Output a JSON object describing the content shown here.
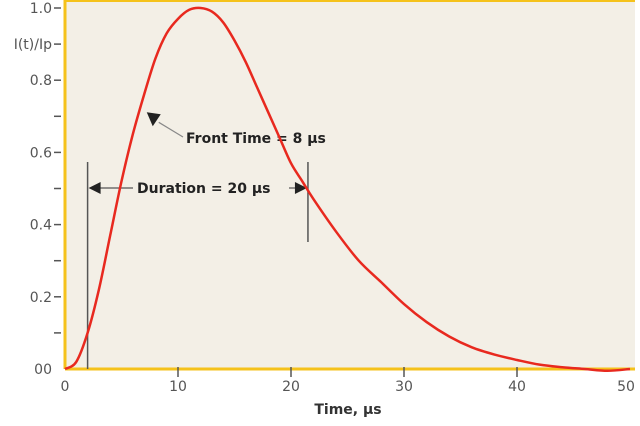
{
  "chart_data": {
    "type": "line",
    "title": "",
    "xlabel": "Time, µs",
    "ylabel": "I(t)/Ip",
    "xlim": [
      0,
      50
    ],
    "ylim": [
      0,
      1.0
    ],
    "x_ticks": [
      0,
      10,
      20,
      30,
      40,
      50
    ],
    "x_tick_labels": [
      "0",
      "10",
      "20",
      "30",
      "40",
      "50"
    ],
    "y_ticks": [
      0,
      0.1,
      0.2,
      0.3,
      0.4,
      0.5,
      0.6,
      0.7,
      0.8,
      0.9,
      1.0
    ],
    "y_tick_labels": [
      {
        "value": 1.0,
        "label": "1.0"
      },
      {
        "value": 0.9,
        "label": "I(t)/Ip"
      },
      {
        "value": 0.8,
        "label": "0.8"
      },
      {
        "value": 0.6,
        "label": "0.6"
      },
      {
        "value": 0.4,
        "label": "0.4"
      },
      {
        "value": 0.2,
        "label": "0.2"
      },
      {
        "value": 0.0,
        "label": "00"
      }
    ],
    "grid": false,
    "series": [
      {
        "color": "#e8291f",
        "x": [
          0,
          1,
          2,
          3,
          4,
          5,
          6,
          7,
          8,
          9,
          10,
          11,
          12,
          13,
          14,
          15,
          16,
          17,
          18,
          19,
          20,
          21,
          22,
          24,
          26,
          28,
          30,
          32,
          34,
          36,
          38,
          40,
          42,
          44,
          46,
          48,
          50
        ],
        "y": [
          0,
          0.02,
          0.1,
          0.22,
          0.37,
          0.52,
          0.65,
          0.76,
          0.86,
          0.93,
          0.97,
          0.995,
          1.0,
          0.99,
          0.96,
          0.91,
          0.85,
          0.78,
          0.71,
          0.64,
          0.57,
          0.52,
          0.47,
          0.38,
          0.3,
          0.24,
          0.18,
          0.13,
          0.09,
          0.06,
          0.04,
          0.025,
          0.012,
          0.005,
          0,
          -0.005,
          0
        ]
      }
    ],
    "annotations": {
      "front_time": {
        "text": "Front Time = 8 µs",
        "point": [
          7.5,
          0.7
        ]
      },
      "duration": {
        "text": "Duration = 20 µs",
        "from": 2,
        "to": 21.5,
        "level": 0.5
      }
    },
    "colors": {
      "background": "#f3efe6",
      "frame": "#f5c21b",
      "curve": "#e8291f"
    }
  }
}
